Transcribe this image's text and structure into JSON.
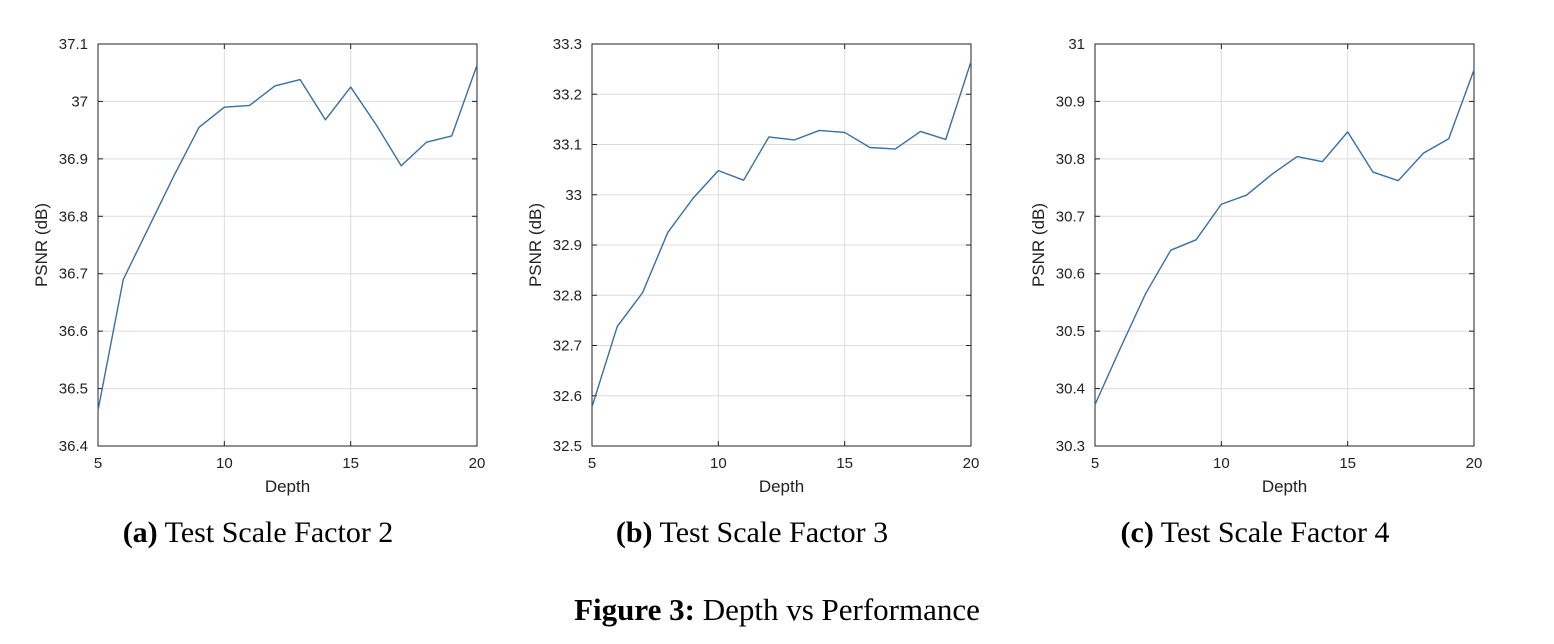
{
  "figure": {
    "label": "Figure 3:",
    "title": "Depth vs Performance"
  },
  "colors": {
    "line": "#3a6ea5",
    "grid": "#dcdcdc",
    "axis": "#222222"
  },
  "chart_data": [
    {
      "type": "line",
      "caption_label": "(a)",
      "caption_text": "Test Scale Factor 2",
      "xlabel": "Depth",
      "ylabel": "PSNR (dB)",
      "xlim": [
        5,
        20
      ],
      "ylim": [
        36.4,
        37.1
      ],
      "xticks": [
        "5",
        "10",
        "15",
        "20"
      ],
      "yticks": [
        "36.4",
        "36.5",
        "36.6",
        "36.7",
        "36.8",
        "36.9",
        "37",
        "37.1"
      ],
      "grid": true,
      "x": [
        5,
        6,
        7,
        8,
        9,
        10,
        11,
        12,
        13,
        14,
        15,
        16,
        17,
        18,
        19,
        20
      ],
      "y": [
        36.462,
        36.69,
        36.78,
        36.87,
        36.955,
        36.99,
        36.993,
        37.027,
        37.038,
        36.968,
        37.025,
        36.96,
        36.888,
        36.929,
        36.94,
        37.063
      ]
    },
    {
      "type": "line",
      "caption_label": "(b)",
      "caption_text": "Test Scale Factor 3",
      "xlabel": "Depth",
      "ylabel": "PSNR (dB)",
      "xlim": [
        5,
        20
      ],
      "ylim": [
        32.5,
        33.3
      ],
      "xticks": [
        "5",
        "10",
        "15",
        "20"
      ],
      "yticks": [
        "32.5",
        "32.6",
        "32.7",
        "32.8",
        "32.9",
        "33",
        "33.1",
        "33.2",
        "33.3"
      ],
      "grid": true,
      "x": [
        5,
        6,
        7,
        8,
        9,
        10,
        11,
        12,
        13,
        14,
        15,
        16,
        17,
        18,
        19,
        20
      ],
      "y": [
        32.578,
        32.738,
        32.805,
        32.925,
        32.993,
        33.048,
        33.029,
        33.115,
        33.109,
        33.128,
        33.124,
        33.094,
        33.091,
        33.126,
        33.11,
        33.265
      ]
    },
    {
      "type": "line",
      "caption_label": "(c)",
      "caption_text": "Test Scale Factor 4",
      "xlabel": "Depth",
      "ylabel": "PSNR (dB)",
      "xlim": [
        5,
        20
      ],
      "ylim": [
        30.3,
        31
      ],
      "xticks": [
        "5",
        "10",
        "15",
        "20"
      ],
      "yticks": [
        "30.3",
        "30.4",
        "30.5",
        "30.6",
        "30.7",
        "30.8",
        "30.9",
        "31"
      ],
      "grid": true,
      "x": [
        5,
        6,
        7,
        8,
        9,
        10,
        11,
        12,
        13,
        14,
        15,
        16,
        17,
        18,
        19,
        20
      ],
      "y": [
        30.372,
        30.47,
        30.565,
        30.641,
        30.659,
        30.721,
        30.737,
        30.773,
        30.804,
        30.795,
        30.847,
        30.777,
        30.762,
        30.81,
        30.835,
        30.955
      ]
    }
  ]
}
